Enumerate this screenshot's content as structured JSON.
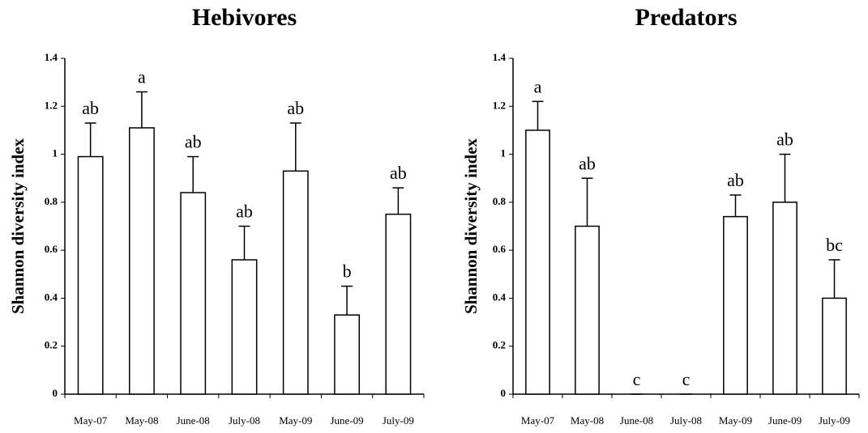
{
  "chart_data": [
    {
      "type": "bar",
      "title": "Hebivores",
      "y_label": "Shannon diversity index",
      "categories": [
        "May-07",
        "May-08",
        "June-08",
        "July-08",
        "May-09",
        "June-09",
        "July-09"
      ],
      "values": [
        0.99,
        1.11,
        0.84,
        0.56,
        0.93,
        0.33,
        0.75
      ],
      "errors": [
        0.14,
        0.15,
        0.15,
        0.14,
        0.2,
        0.12,
        0.11
      ],
      "annotations": [
        "ab",
        "a",
        "ab",
        "ab",
        "ab",
        "b",
        "ab"
      ],
      "color": "#ffffff",
      "edge_color": "#000000",
      "ylim": [
        0,
        1.4
      ],
      "yticks": [
        0,
        0.2,
        0.4,
        0.6,
        0.8,
        1,
        1.2,
        1.4
      ]
    },
    {
      "type": "bar",
      "title": "Predators",
      "y_label": "Shannon diversity index",
      "categories": [
        "May-07",
        "May-08",
        "June-08",
        "July-08",
        "May-09",
        "June-09",
        "July-09"
      ],
      "values": [
        1.1,
        0.7,
        0,
        0,
        0.74,
        0.8,
        0.4
      ],
      "errors": [
        0.12,
        0.2,
        0,
        0,
        0.09,
        0.2,
        0.16
      ],
      "annotations": [
        "a",
        "ab",
        "c",
        "c",
        "ab",
        "ab",
        "bc"
      ],
      "color": "#ffffff",
      "edge_color": "#000000",
      "ylim": [
        0,
        1.4
      ],
      "yticks": [
        0,
        0.2,
        0.4,
        0.6,
        0.8,
        1,
        1.2,
        1.4
      ]
    }
  ]
}
